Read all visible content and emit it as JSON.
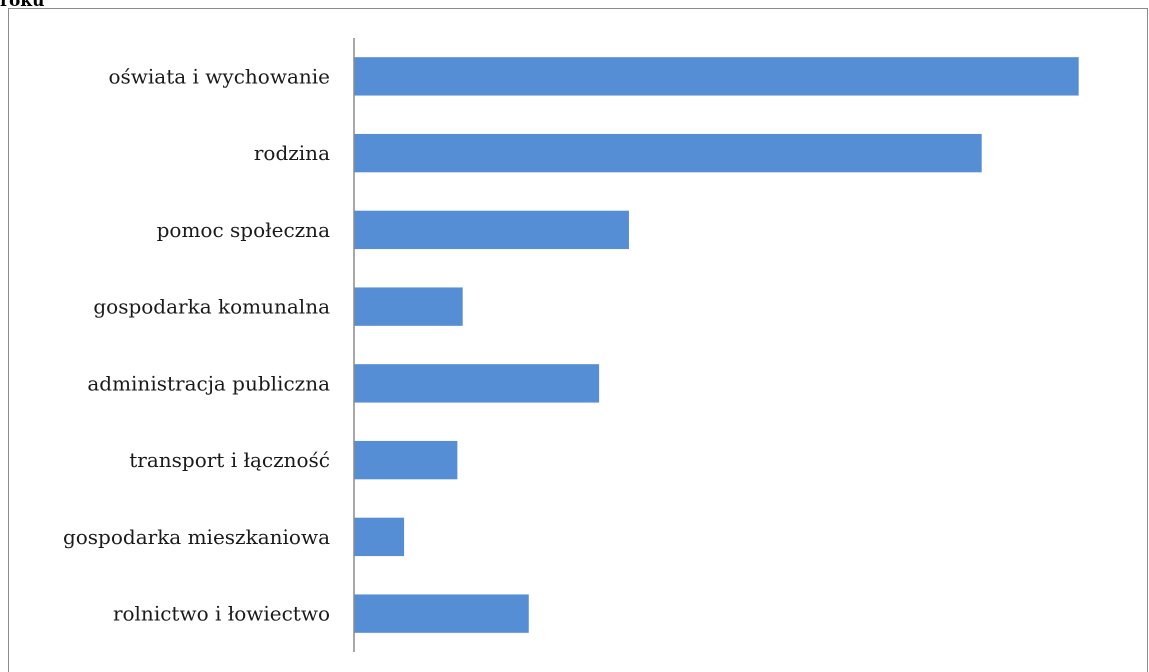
{
  "caption": "roku",
  "chart_data": {
    "type": "bar",
    "orientation": "horizontal",
    "title": "",
    "xlabel": "",
    "ylabel": "",
    "categories": [
      "oświata i wychowanie",
      "rodzina",
      "pomoc społeczna",
      "gospodarka komunalna",
      "administracja publiczna",
      "transport i łączność",
      "gospodarka mieszkaniowa",
      "rolnictwo i łowiectwo"
    ],
    "values": [
      680,
      589,
      258,
      102,
      230,
      97,
      47,
      164
    ],
    "xlim": [
      0,
      700
    ],
    "bar_color": "#558ed5",
    "grid": false,
    "legend": "none"
  }
}
